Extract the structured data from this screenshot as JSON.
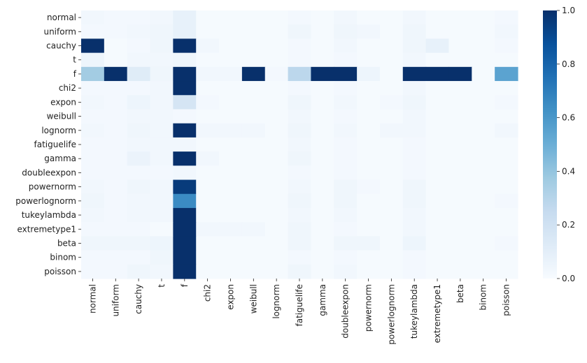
{
  "chart_data": {
    "type": "heatmap",
    "title": "",
    "xlabel": "",
    "ylabel": "",
    "rows": [
      "normal",
      "uniform",
      "cauchy",
      "t",
      "f",
      "chi2",
      "expon",
      "weibull",
      "lognorm",
      "fatiguelife",
      "gamma",
      "doubleexpon",
      "powernorm",
      "powerlognorm",
      "tukeylambda",
      "extremetype1",
      "beta",
      "binom",
      "poisson"
    ],
    "columns": [
      "normal",
      "uniform",
      "cauchy",
      "t",
      "f",
      "chi2",
      "expon",
      "weibull",
      "lognorm",
      "fatiguelife",
      "gamma",
      "doubleexpon",
      "powernorm",
      "powerlognorm",
      "tukeylambda",
      "extremetype1",
      "beta",
      "binom",
      "poisson"
    ],
    "values": [
      [
        0.03,
        0.02,
        0.02,
        0.03,
        0.08,
        0.01,
        0.01,
        0.01,
        0.01,
        0.02,
        0.01,
        0.03,
        0.01,
        0.01,
        0.03,
        0.01,
        0.01,
        0.01,
        0.02
      ],
      [
        0.02,
        0.02,
        0.03,
        0.04,
        0.08,
        0.01,
        0.01,
        0.01,
        0.01,
        0.04,
        0.01,
        0.04,
        0.03,
        0.01,
        0.04,
        0.01,
        0.01,
        0.01,
        0.03
      ],
      [
        1.0,
        0.01,
        0.02,
        0.04,
        1.0,
        0.03,
        0.01,
        0.01,
        0.01,
        0.02,
        0.01,
        0.03,
        0.01,
        0.01,
        0.04,
        0.08,
        0.01,
        0.01,
        0.02
      ],
      [
        0.05,
        0.01,
        0.03,
        0.03,
        0.04,
        0.01,
        0.01,
        0.01,
        0.01,
        0.02,
        0.01,
        0.02,
        0.01,
        0.01,
        0.03,
        0.01,
        0.01,
        0.01,
        0.01
      ],
      [
        0.36,
        1.0,
        0.12,
        0.04,
        1.0,
        0.03,
        0.03,
        1.0,
        0.02,
        0.28,
        1.0,
        1.0,
        0.05,
        0.01,
        1.0,
        1.0,
        1.0,
        0.01,
        0.55
      ],
      [
        0.02,
        0.02,
        0.02,
        0.03,
        1.0,
        0.01,
        0.01,
        0.01,
        0.01,
        0.02,
        0.01,
        0.02,
        0.01,
        0.01,
        0.03,
        0.01,
        0.01,
        0.01,
        0.01
      ],
      [
        0.03,
        0.02,
        0.05,
        0.03,
        0.17,
        0.02,
        0.01,
        0.01,
        0.01,
        0.04,
        0.01,
        0.03,
        0.01,
        0.02,
        0.04,
        0.01,
        0.01,
        0.01,
        0.02
      ],
      [
        0.02,
        0.02,
        0.03,
        0.03,
        0.02,
        0.01,
        0.01,
        0.01,
        0.01,
        0.03,
        0.01,
        0.02,
        0.01,
        0.01,
        0.03,
        0.01,
        0.01,
        0.01,
        0.01
      ],
      [
        0.03,
        0.02,
        0.04,
        0.03,
        1.0,
        0.03,
        0.03,
        0.03,
        0.01,
        0.04,
        0.01,
        0.03,
        0.01,
        0.03,
        0.03,
        0.01,
        0.01,
        0.01,
        0.03
      ],
      [
        0.02,
        0.02,
        0.03,
        0.03,
        0.03,
        0.01,
        0.01,
        0.01,
        0.01,
        0.03,
        0.01,
        0.02,
        0.01,
        0.01,
        0.02,
        0.01,
        0.01,
        0.01,
        0.01
      ],
      [
        0.02,
        0.02,
        0.06,
        0.03,
        1.0,
        0.03,
        0.01,
        0.01,
        0.01,
        0.04,
        0.01,
        0.02,
        0.01,
        0.01,
        0.02,
        0.01,
        0.01,
        0.01,
        0.01
      ],
      [
        0.02,
        0.02,
        0.02,
        0.02,
        0.03,
        0.01,
        0.01,
        0.01,
        0.01,
        0.02,
        0.01,
        0.02,
        0.01,
        0.01,
        0.02,
        0.01,
        0.01,
        0.01,
        0.01
      ],
      [
        0.03,
        0.02,
        0.04,
        0.03,
        0.96,
        0.01,
        0.01,
        0.01,
        0.01,
        0.03,
        0.01,
        0.04,
        0.02,
        0.01,
        0.04,
        0.01,
        0.01,
        0.01,
        0.01
      ],
      [
        0.04,
        0.02,
        0.03,
        0.03,
        0.65,
        0.01,
        0.01,
        0.01,
        0.01,
        0.04,
        0.01,
        0.04,
        0.01,
        0.01,
        0.04,
        0.01,
        0.01,
        0.01,
        0.02
      ],
      [
        0.03,
        0.02,
        0.03,
        0.03,
        1.0,
        0.01,
        0.01,
        0.01,
        0.01,
        0.03,
        0.01,
        0.03,
        0.01,
        0.01,
        0.03,
        0.01,
        0.01,
        0.01,
        0.01
      ],
      [
        0.02,
        0.02,
        0.02,
        0.01,
        1.0,
        0.03,
        0.03,
        0.03,
        0.01,
        0.04,
        0.01,
        0.02,
        0.01,
        0.01,
        0.03,
        0.01,
        0.01,
        0.01,
        0.01
      ],
      [
        0.04,
        0.04,
        0.04,
        0.05,
        1.0,
        0.01,
        0.01,
        0.01,
        0.01,
        0.04,
        0.01,
        0.04,
        0.04,
        0.01,
        0.05,
        0.01,
        0.01,
        0.01,
        0.02
      ],
      [
        0.02,
        0.02,
        0.02,
        0.04,
        1.0,
        0.01,
        0.01,
        0.01,
        0.01,
        0.02,
        0.01,
        0.02,
        0.01,
        0.01,
        0.02,
        0.01,
        0.01,
        0.01,
        0.01
      ],
      [
        0.02,
        0.02,
        0.04,
        0.03,
        1.0,
        0.01,
        0.01,
        0.01,
        0.01,
        0.04,
        0.01,
        0.03,
        0.01,
        0.01,
        0.02,
        0.01,
        0.01,
        0.01,
        0.01
      ]
    ],
    "vmin": 0,
    "vmax": 1,
    "colormap": "Blues",
    "colorbar_ticks": [
      "0.0",
      "0.2",
      "0.4",
      "0.6",
      "0.8",
      "1.0"
    ],
    "colorbar_tick_values": [
      0,
      0.2,
      0.4,
      0.6,
      0.8,
      1.0
    ],
    "grid": false,
    "legend": "colorbar-right"
  }
}
